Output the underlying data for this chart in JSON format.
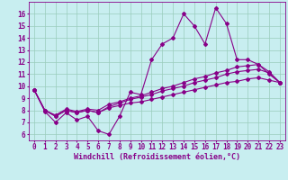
{
  "x_ticks": [
    0,
    1,
    2,
    3,
    4,
    5,
    6,
    7,
    8,
    9,
    10,
    11,
    12,
    13,
    14,
    15,
    16,
    17,
    18,
    19,
    20,
    21,
    22,
    23
  ],
  "xlabel": "Windchill (Refroidissement éolien,°C)",
  "ylim": [
    5.5,
    17.0
  ],
  "xlim": [
    -0.5,
    23.5
  ],
  "yticks": [
    6,
    7,
    8,
    9,
    10,
    11,
    12,
    13,
    14,
    15,
    16
  ],
  "bg_color": "#c8eef0",
  "line_color": "#880088",
  "grid_color": "#99ccbb",
  "line1_y": [
    9.7,
    7.9,
    7.0,
    7.8,
    7.2,
    7.5,
    6.3,
    6.0,
    7.5,
    9.5,
    9.3,
    12.2,
    13.5,
    14.0,
    16.0,
    15.0,
    13.5,
    16.5,
    15.2,
    12.2,
    12.2,
    11.8,
    11.0,
    10.3
  ],
  "line2_y": [
    9.7,
    8.0,
    7.5,
    8.0,
    7.8,
    8.0,
    7.8,
    8.2,
    8.4,
    8.6,
    8.7,
    8.9,
    9.1,
    9.3,
    9.5,
    9.7,
    9.9,
    10.1,
    10.3,
    10.4,
    10.6,
    10.7,
    10.5,
    10.3
  ],
  "line3_y": [
    9.7,
    8.0,
    7.5,
    8.0,
    7.8,
    8.0,
    7.8,
    8.3,
    8.6,
    8.9,
    9.1,
    9.3,
    9.6,
    9.8,
    10.0,
    10.3,
    10.5,
    10.7,
    11.0,
    11.2,
    11.3,
    11.4,
    11.1,
    10.3
  ],
  "line4_y": [
    9.7,
    8.0,
    7.6,
    8.1,
    7.9,
    8.1,
    8.0,
    8.5,
    8.7,
    9.0,
    9.2,
    9.5,
    9.8,
    10.0,
    10.3,
    10.6,
    10.8,
    11.1,
    11.3,
    11.6,
    11.7,
    11.8,
    11.2,
    10.3
  ],
  "marker": "D",
  "markersize": 2.0,
  "linewidth": 0.8,
  "axis_fontsize": 6,
  "tick_fontsize": 5.5
}
